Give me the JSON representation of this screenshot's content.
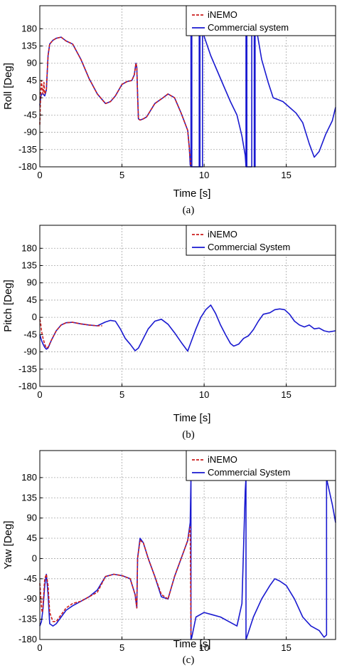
{
  "colors": {
    "inemo": "#cc1f1f",
    "commercial": "#1a1ad0",
    "grid": "#a8a8a8",
    "axis": "#000000"
  },
  "chart_data": [
    {
      "type": "line",
      "caption": "(a)",
      "xlabel": "Time [s]",
      "ylabel": "Roll [Deg]",
      "xlim": [
        0,
        18
      ],
      "ylim": [
        -180,
        240
      ],
      "xticks": [
        0,
        5,
        10,
        15
      ],
      "yticks": [
        -180,
        -135,
        -90,
        -45,
        0,
        45,
        90,
        135,
        180
      ],
      "grid": true,
      "legend_position": "top-right",
      "series": [
        {
          "name": "iNEMO",
          "style": "dashed",
          "color": "#cc1f1f",
          "x": [
            0,
            0.05,
            0.1,
            0.15,
            0.2,
            0.25,
            0.3,
            0.4,
            0.5,
            0.6,
            0.8,
            1.0,
            1.3,
            1.6,
            2.0,
            2.5,
            3.0,
            3.5,
            4.0,
            4.3,
            4.6,
            5.0,
            5.3,
            5.6,
            5.75,
            5.85,
            5.9,
            5.95,
            6.0,
            6.1,
            6.3,
            6.5,
            7.0,
            7.5,
            7.8,
            8.2,
            8.6,
            9.0,
            9.2
          ],
          "y": [
            -70,
            10,
            45,
            20,
            10,
            40,
            10,
            20,
            110,
            140,
            150,
            155,
            158,
            148,
            140,
            100,
            50,
            10,
            -15,
            -10,
            5,
            35,
            42,
            45,
            60,
            90,
            80,
            10,
            -55,
            -58,
            -55,
            -50,
            -15,
            0,
            10,
            0,
            -40,
            -85,
            -180
          ]
        },
        {
          "name": "Commercial system",
          "style": "solid",
          "color": "#1a1ad0",
          "x": [
            0,
            0.05,
            0.1,
            0.2,
            0.3,
            0.4,
            0.5,
            0.6,
            0.8,
            1.0,
            1.3,
            1.6,
            2.0,
            2.5,
            3.0,
            3.5,
            4.0,
            4.3,
            4.6,
            5.0,
            5.3,
            5.6,
            5.75,
            5.85,
            5.9,
            5.95,
            6.0,
            6.1,
            6.3,
            6.5,
            7.0,
            7.5,
            7.8,
            8.2,
            8.6,
            9.0,
            9.1,
            9.15,
            9.2,
            9.2,
            9.25,
            9.25,
            9.7,
            9.7,
            9.75,
            9.75,
            9.8,
            9.9,
            9.9,
            10.0,
            10.4,
            10.8,
            11.2,
            11.6,
            12.0,
            12.3,
            12.5,
            12.55,
            12.55,
            12.6,
            12.6,
            12.65,
            12.9,
            12.9,
            13.0,
            13.05,
            13.05,
            13.1,
            13.1,
            13.2,
            13.5,
            13.9,
            14.2,
            14.5,
            14.8,
            15.2,
            15.6,
            16.0,
            16.4,
            16.7,
            17.0,
            17.4,
            17.8,
            18.0
          ],
          "y": [
            -20,
            0,
            10,
            10,
            5,
            20,
            110,
            140,
            150,
            155,
            158,
            148,
            140,
            100,
            50,
            10,
            -15,
            -10,
            5,
            35,
            42,
            45,
            60,
            90,
            80,
            10,
            -55,
            -58,
            -55,
            -50,
            -15,
            0,
            10,
            0,
            -40,
            -85,
            -130,
            -175,
            -180,
            180,
            180,
            -180,
            -180,
            180,
            180,
            -180,
            -180,
            -180,
            180,
            160,
            110,
            70,
            30,
            -10,
            -45,
            -100,
            -150,
            -180,
            180,
            180,
            -180,
            -180,
            -180,
            180,
            180,
            180,
            -180,
            -180,
            180,
            175,
            100,
            40,
            0,
            -5,
            -10,
            -25,
            -40,
            -65,
            -120,
            -155,
            -140,
            -95,
            -60,
            -25
          ]
        }
      ]
    },
    {
      "type": "line",
      "caption": "(b)",
      "xlabel": "Time [s]",
      "ylabel": "Pitch [Deg]",
      "xlim": [
        0,
        18
      ],
      "ylim": [
        -180,
        240
      ],
      "xticks": [
        0,
        5,
        10,
        15
      ],
      "yticks": [
        -180,
        -135,
        -90,
        -45,
        0,
        45,
        90,
        135,
        180
      ],
      "grid": true,
      "legend_position": "top-right",
      "series": [
        {
          "name": "iNEMO",
          "style": "dashed",
          "color": "#cc1f1f",
          "x": [
            0,
            0.05,
            0.1,
            0.2,
            0.3,
            0.4,
            0.5,
            0.7,
            1.0,
            1.3,
            1.6,
            2.0,
            2.5,
            3.0,
            3.5,
            3.8
          ],
          "y": [
            -5,
            -15,
            -35,
            -55,
            -70,
            -80,
            -78,
            -60,
            -35,
            -20,
            -14,
            -13,
            -17,
            -20,
            -22,
            -22
          ]
        },
        {
          "name": "Commercial System",
          "style": "solid",
          "color": "#1a1ad0",
          "x": [
            0,
            0.1,
            0.2,
            0.3,
            0.4,
            0.5,
            0.7,
            1.0,
            1.3,
            1.6,
            2.0,
            2.5,
            3.0,
            3.5,
            4.0,
            4.3,
            4.6,
            4.9,
            5.2,
            5.5,
            5.8,
            6.0,
            6.3,
            6.6,
            7.0,
            7.4,
            7.8,
            8.2,
            8.6,
            9.0,
            9.2,
            9.5,
            9.8,
            10.1,
            10.4,
            10.7,
            11.0,
            11.3,
            11.6,
            11.8,
            12.1,
            12.4,
            12.7,
            13.0,
            13.3,
            13.6,
            14.0,
            14.3,
            14.6,
            14.9,
            15.2,
            15.5,
            15.8,
            16.1,
            16.4,
            16.7,
            17.0,
            17.3,
            17.6,
            18.0
          ],
          "y": [
            -45,
            -60,
            -70,
            -78,
            -83,
            -80,
            -60,
            -35,
            -20,
            -14,
            -13,
            -17,
            -20,
            -22,
            -12,
            -8,
            -10,
            -30,
            -55,
            -70,
            -87,
            -80,
            -55,
            -30,
            -10,
            -5,
            -18,
            -40,
            -65,
            -88,
            -65,
            -30,
            0,
            20,
            32,
            10,
            -20,
            -45,
            -68,
            -75,
            -70,
            -55,
            -48,
            -32,
            -10,
            8,
            12,
            20,
            22,
            20,
            8,
            -10,
            -20,
            -25,
            -20,
            -30,
            -28,
            -35,
            -38,
            -35
          ]
        }
      ]
    },
    {
      "type": "line",
      "caption": "(c)",
      "xlabel": "Time [s]",
      "ylabel": "Yaw [Deg]",
      "xlim": [
        0,
        18
      ],
      "ylim": [
        -180,
        240
      ],
      "xticks": [
        0,
        5,
        10,
        15
      ],
      "yticks": [
        -180,
        -135,
        -90,
        -45,
        0,
        45,
        90,
        135,
        180
      ],
      "grid": true,
      "legend_position": "top-right",
      "series": [
        {
          "name": "iNEMO",
          "style": "dashed",
          "color": "#cc1f1f",
          "x": [
            0,
            0.05,
            0.1,
            0.15,
            0.2,
            0.3,
            0.4,
            0.5,
            0.6,
            0.8,
            1.0,
            1.3,
            1.6,
            2.0,
            2.5,
            3.0,
            3.5,
            4.0,
            4.5,
            5.0,
            5.5,
            5.8,
            5.9,
            5.95,
            6.1,
            6.3,
            6.6,
            7.0,
            7.4,
            7.8,
            8.2,
            8.6,
            9.0,
            9.15,
            9.2
          ],
          "y": [
            -55,
            -80,
            -110,
            -120,
            -100,
            -45,
            -35,
            -60,
            -120,
            -140,
            -140,
            -125,
            -110,
            -100,
            -95,
            -85,
            -75,
            -40,
            -35,
            -38,
            -45,
            -80,
            -110,
            0,
            40,
            35,
            0,
            -40,
            -80,
            -90,
            -40,
            0,
            40,
            70,
            -170
          ]
        },
        {
          "name": "Commercial System",
          "style": "solid",
          "color": "#1a1ad0",
          "x": [
            0,
            0.1,
            0.2,
            0.3,
            0.4,
            0.5,
            0.6,
            0.8,
            1.0,
            1.3,
            1.6,
            2.0,
            2.5,
            3.0,
            3.5,
            4.0,
            4.5,
            5.0,
            5.5,
            5.8,
            5.9,
            5.95,
            6.1,
            6.3,
            6.6,
            7.0,
            7.4,
            7.8,
            8.2,
            8.6,
            9.0,
            9.15,
            9.2,
            9.2,
            9.25,
            9.5,
            10.0,
            10.5,
            11.0,
            11.5,
            12.0,
            12.3,
            12.5,
            12.55,
            12.55,
            12.6,
            13.0,
            13.5,
            14.0,
            14.3,
            14.6,
            15.0,
            15.5,
            16.0,
            16.5,
            17.0,
            17.3,
            17.45,
            17.45,
            17.5,
            17.8,
            18.0
          ],
          "y": [
            -150,
            -140,
            -110,
            -60,
            -35,
            -80,
            -145,
            -150,
            -145,
            -130,
            -115,
            -105,
            -95,
            -85,
            -70,
            -40,
            -35,
            -38,
            -45,
            -80,
            -110,
            0,
            45,
            35,
            0,
            -40,
            -85,
            -90,
            -40,
            0,
            40,
            80,
            180,
            -180,
            -175,
            -130,
            -120,
            -125,
            -130,
            -140,
            -150,
            -100,
            150,
            180,
            -180,
            -175,
            -130,
            -90,
            -60,
            -45,
            -50,
            -60,
            -90,
            -130,
            -150,
            -160,
            -175,
            -170,
            180,
            170,
            120,
            80
          ]
        }
      ]
    }
  ]
}
